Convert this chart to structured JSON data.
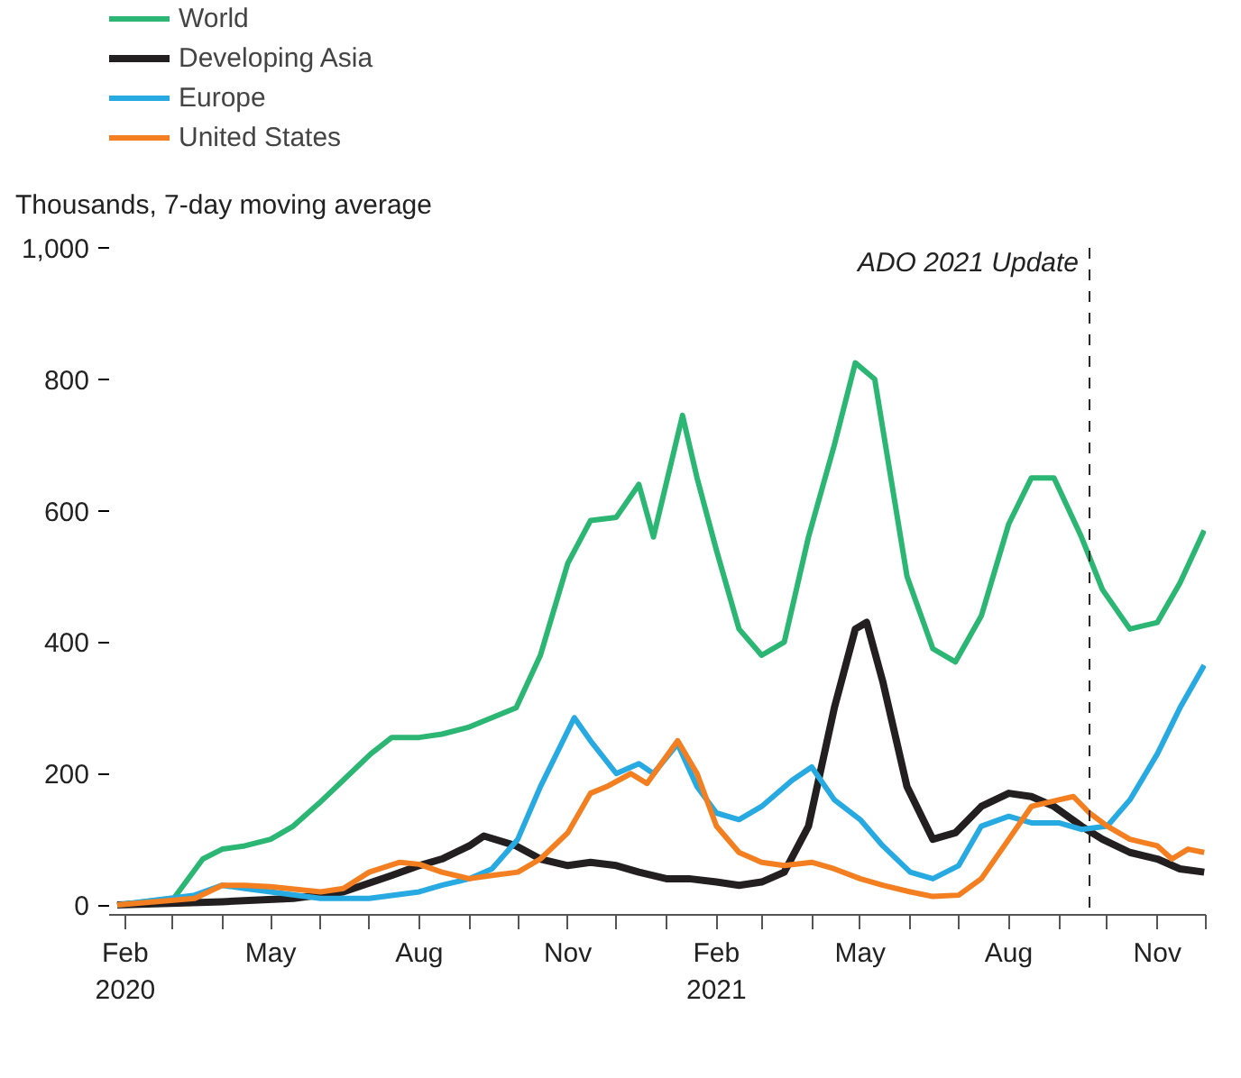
{
  "chart_data": {
    "type": "line",
    "ylabel": "Thousands, 7-day moving average",
    "xlim": [
      "2020-01-22",
      "2021-12-01"
    ],
    "ylim": [
      -15,
      1000
    ],
    "yticks": [
      0,
      200,
      400,
      600,
      800,
      {
        "value": 1000,
        "label": "1,000"
      }
    ],
    "xticks": [
      {
        "value": "2020-02-01",
        "label": "Feb\n2020"
      },
      {
        "value": "2020-05-01",
        "label": "May"
      },
      {
        "value": "2020-08-01",
        "label": "Aug"
      },
      {
        "value": "2020-11-01",
        "label": "Nov"
      },
      {
        "value": "2021-02-01",
        "label": "Feb\n2021"
      },
      {
        "value": "2021-05-01",
        "label": "May"
      },
      {
        "value": "2021-08-01",
        "label": "Aug"
      },
      {
        "value": "2021-11-01",
        "label": "Nov"
      }
    ],
    "grid": false,
    "legend": "top left",
    "marker": "none",
    "line_style": "solid",
    "ref_lines": [
      {
        "axis": "x",
        "value": "2021-09-20",
        "label": "ADO 2021 Update",
        "color": "#222222",
        "line_style": "dashed"
      }
    ],
    "series": [
      {
        "name": "World",
        "color": "#2bb673",
        "x": [
          "2020-01-27",
          "2020-03-02",
          "2020-03-20",
          "2020-04-01",
          "2020-04-15",
          "2020-05-01",
          "2020-05-15",
          "2020-05-31",
          "2020-06-15",
          "2020-07-02",
          "2020-07-15",
          "2020-08-01",
          "2020-08-15",
          "2020-08-31",
          "2020-09-15",
          "2020-09-30",
          "2020-10-15",
          "2020-11-01",
          "2020-11-15",
          "2020-12-01",
          "2020-12-15",
          "2020-12-24",
          "2021-01-11",
          "2021-01-20",
          "2021-02-01",
          "2021-02-15",
          "2021-03-01",
          "2021-03-15",
          "2021-03-30",
          "2021-04-15",
          "2021-04-28",
          "2021-05-10",
          "2021-05-20",
          "2021-05-30",
          "2021-06-15",
          "2021-06-29",
          "2021-07-15",
          "2021-08-01",
          "2021-08-15",
          "2021-08-29",
          "2021-09-15",
          "2021-09-28",
          "2021-10-15",
          "2021-11-01",
          "2021-11-15",
          "2021-11-30"
        ],
        "values": [
          0,
          10,
          70,
          85,
          90,
          100,
          120,
          155,
          190,
          230,
          255,
          255,
          260,
          270,
          285,
          300,
          380,
          520,
          585,
          590,
          640,
          560,
          745,
          650,
          540,
          420,
          380,
          400,
          560,
          700,
          825,
          800,
          650,
          500,
          390,
          370,
          440,
          580,
          650,
          650,
          560,
          480,
          420,
          430,
          490,
          570
        ]
      },
      {
        "name": "Developing Asia",
        "color": "#231f20",
        "x": [
          "2020-01-27",
          "2020-04-01",
          "2020-05-15",
          "2020-06-15",
          "2020-07-15",
          "2020-08-01",
          "2020-08-15",
          "2020-09-01",
          "2020-09-10",
          "2020-09-30",
          "2020-10-15",
          "2020-11-01",
          "2020-11-15",
          "2020-12-01",
          "2020-12-15",
          "2021-01-01",
          "2021-01-15",
          "2021-02-01",
          "2021-02-15",
          "2021-03-01",
          "2021-03-15",
          "2021-03-30",
          "2021-04-15",
          "2021-04-28",
          "2021-05-05",
          "2021-05-15",
          "2021-05-30",
          "2021-06-15",
          "2021-06-29",
          "2021-07-15",
          "2021-08-01",
          "2021-08-15",
          "2021-08-29",
          "2021-09-15",
          "2021-09-28",
          "2021-10-15",
          "2021-11-01",
          "2021-11-15",
          "2021-11-30"
        ],
        "values": [
          0,
          5,
          10,
          20,
          45,
          60,
          70,
          90,
          105,
          90,
          70,
          60,
          65,
          60,
          50,
          40,
          40,
          35,
          30,
          35,
          50,
          120,
          300,
          420,
          430,
          340,
          180,
          100,
          110,
          150,
          170,
          165,
          150,
          120,
          100,
          80,
          70,
          55,
          50
        ]
      },
      {
        "name": "Europe",
        "color": "#27aae1",
        "x": [
          "2020-01-27",
          "2020-03-15",
          "2020-04-01",
          "2020-04-15",
          "2020-05-01",
          "2020-06-01",
          "2020-07-01",
          "2020-08-01",
          "2020-08-15",
          "2020-09-01",
          "2020-09-15",
          "2020-10-01",
          "2020-10-15",
          "2020-11-05",
          "2020-11-15",
          "2020-12-01",
          "2020-12-15",
          "2020-12-24",
          "2021-01-08",
          "2021-01-20",
          "2021-02-01",
          "2021-02-15",
          "2021-03-01",
          "2021-03-20",
          "2021-04-01",
          "2021-04-15",
          "2021-05-01",
          "2021-05-15",
          "2021-06-01",
          "2021-06-15",
          "2021-07-01",
          "2021-07-15",
          "2021-08-01",
          "2021-08-15",
          "2021-09-01",
          "2021-09-15",
          "2021-10-01",
          "2021-10-15",
          "2021-11-01",
          "2021-11-15",
          "2021-11-30"
        ],
        "values": [
          0,
          15,
          30,
          25,
          20,
          10,
          10,
          20,
          30,
          40,
          55,
          100,
          180,
          285,
          250,
          200,
          215,
          200,
          245,
          180,
          140,
          130,
          150,
          190,
          210,
          160,
          130,
          90,
          50,
          40,
          60,
          120,
          135,
          125,
          125,
          115,
          120,
          160,
          230,
          300,
          365
        ]
      },
      {
        "name": "United States",
        "color": "#f47f20",
        "x": [
          "2020-01-27",
          "2020-03-15",
          "2020-04-01",
          "2020-04-15",
          "2020-05-01",
          "2020-06-01",
          "2020-06-15",
          "2020-07-01",
          "2020-07-20",
          "2020-08-01",
          "2020-08-15",
          "2020-09-01",
          "2020-09-15",
          "2020-10-01",
          "2020-10-15",
          "2020-11-01",
          "2020-11-15",
          "2020-11-25",
          "2020-12-10",
          "2020-12-20",
          "2021-01-08",
          "2021-01-20",
          "2021-02-01",
          "2021-02-15",
          "2021-03-01",
          "2021-03-15",
          "2021-04-01",
          "2021-04-15",
          "2021-05-01",
          "2021-05-15",
          "2021-06-01",
          "2021-06-15",
          "2021-07-01",
          "2021-07-15",
          "2021-08-01",
          "2021-08-15",
          "2021-09-01",
          "2021-09-10",
          "2021-09-20",
          "2021-10-01",
          "2021-10-15",
          "2021-11-01",
          "2021-11-10",
          "2021-11-20",
          "2021-11-30"
        ],
        "values": [
          0,
          10,
          30,
          30,
          28,
          20,
          25,
          50,
          65,
          62,
          50,
          40,
          45,
          50,
          70,
          110,
          170,
          180,
          200,
          185,
          250,
          200,
          120,
          80,
          65,
          60,
          65,
          55,
          40,
          30,
          20,
          13,
          15,
          40,
          100,
          150,
          160,
          165,
          140,
          120,
          100,
          90,
          70,
          85,
          80
        ]
      }
    ]
  }
}
